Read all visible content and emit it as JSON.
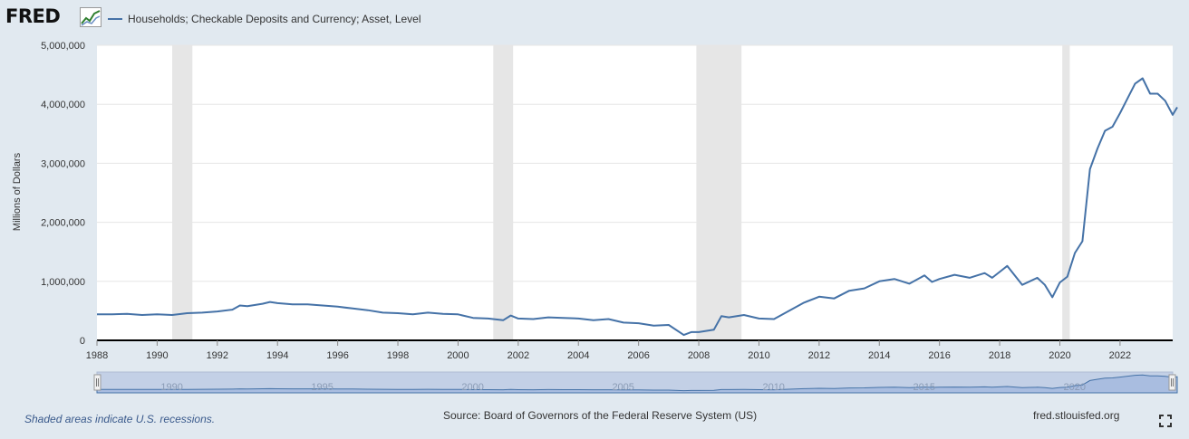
{
  "header": {
    "logo_text": "FRED",
    "logo_icon": "fred-chart-icon",
    "legend_label": "Households; Checkable Deposits and Currency; Asset, Level",
    "series_color": "#4572a7"
  },
  "footer": {
    "recession_note": "Shaded areas indicate U.S. recessions.",
    "source": "Source: Board of Governors of the Federal Reserve System (US)",
    "url": "fred.stlouisfed.org",
    "fullscreen_icon": "fullscreen-icon"
  },
  "chart_data": {
    "type": "line",
    "title": "",
    "ylabel": "Millions of Dollars",
    "xlabel": "",
    "xlim": [
      1988.0,
      2023.75
    ],
    "ylim": [
      0,
      5000000
    ],
    "x_ticks": [
      1988,
      1990,
      1992,
      1994,
      1996,
      1998,
      2000,
      2002,
      2004,
      2006,
      2008,
      2010,
      2012,
      2014,
      2016,
      2018,
      2020,
      2022
    ],
    "y_ticks": [
      0,
      1000000,
      2000000,
      3000000,
      4000000,
      5000000
    ],
    "y_tick_labels": [
      "0",
      "1,000,000",
      "2,000,000",
      "3,000,000",
      "4,000,000",
      "5,000,000"
    ],
    "grid": true,
    "legend_position": "top-left",
    "recessions": [
      [
        1990.5,
        1991.17
      ],
      [
        2001.17,
        2001.83
      ],
      [
        2007.92,
        2009.42
      ],
      [
        2020.08,
        2020.33
      ]
    ],
    "navigator_labels": [
      "1990",
      "1995",
      "2000",
      "2005",
      "2010",
      "2015",
      "2020"
    ],
    "series": [
      {
        "name": "Households; Checkable Deposits and Currency; Asset, Level",
        "color": "#4572a7",
        "points": [
          [
            1988.0,
            440000
          ],
          [
            1988.5,
            440000
          ],
          [
            1989.0,
            450000
          ],
          [
            1989.5,
            430000
          ],
          [
            1990.0,
            440000
          ],
          [
            1990.5,
            430000
          ],
          [
            1991.0,
            460000
          ],
          [
            1991.5,
            470000
          ],
          [
            1992.0,
            490000
          ],
          [
            1992.5,
            520000
          ],
          [
            1992.75,
            590000
          ],
          [
            1993.0,
            580000
          ],
          [
            1993.5,
            620000
          ],
          [
            1993.75,
            650000
          ],
          [
            1994.0,
            630000
          ],
          [
            1994.5,
            610000
          ],
          [
            1995.0,
            610000
          ],
          [
            1995.5,
            590000
          ],
          [
            1996.0,
            570000
          ],
          [
            1996.5,
            540000
          ],
          [
            1997.0,
            510000
          ],
          [
            1997.5,
            470000
          ],
          [
            1998.0,
            460000
          ],
          [
            1998.5,
            440000
          ],
          [
            1999.0,
            470000
          ],
          [
            1999.5,
            450000
          ],
          [
            2000.0,
            440000
          ],
          [
            2000.5,
            380000
          ],
          [
            2001.0,
            370000
          ],
          [
            2001.5,
            340000
          ],
          [
            2001.75,
            420000
          ],
          [
            2002.0,
            370000
          ],
          [
            2002.5,
            360000
          ],
          [
            2003.0,
            390000
          ],
          [
            2003.5,
            380000
          ],
          [
            2004.0,
            370000
          ],
          [
            2004.5,
            340000
          ],
          [
            2005.0,
            360000
          ],
          [
            2005.5,
            300000
          ],
          [
            2006.0,
            290000
          ],
          [
            2006.5,
            250000
          ],
          [
            2007.0,
            260000
          ],
          [
            2007.5,
            90000
          ],
          [
            2007.75,
            140000
          ],
          [
            2008.0,
            140000
          ],
          [
            2008.5,
            180000
          ],
          [
            2008.75,
            410000
          ],
          [
            2009.0,
            390000
          ],
          [
            2009.5,
            430000
          ],
          [
            2010.0,
            370000
          ],
          [
            2010.5,
            360000
          ],
          [
            2011.0,
            500000
          ],
          [
            2011.5,
            640000
          ],
          [
            2012.0,
            740000
          ],
          [
            2012.5,
            710000
          ],
          [
            2013.0,
            840000
          ],
          [
            2013.5,
            880000
          ],
          [
            2014.0,
            1000000
          ],
          [
            2014.5,
            1040000
          ],
          [
            2015.0,
            960000
          ],
          [
            2015.5,
            1100000
          ],
          [
            2015.75,
            990000
          ],
          [
            2016.0,
            1040000
          ],
          [
            2016.5,
            1110000
          ],
          [
            2017.0,
            1060000
          ],
          [
            2017.5,
            1140000
          ],
          [
            2017.75,
            1060000
          ],
          [
            2018.0,
            1160000
          ],
          [
            2018.25,
            1260000
          ],
          [
            2018.5,
            1100000
          ],
          [
            2018.75,
            940000
          ],
          [
            2019.0,
            1000000
          ],
          [
            2019.25,
            1060000
          ],
          [
            2019.5,
            940000
          ],
          [
            2019.75,
            730000
          ],
          [
            2020.0,
            980000
          ],
          [
            2020.25,
            1080000
          ],
          [
            2020.5,
            1480000
          ],
          [
            2020.75,
            1680000
          ],
          [
            2021.0,
            2900000
          ],
          [
            2021.25,
            3250000
          ],
          [
            2021.5,
            3550000
          ],
          [
            2021.75,
            3620000
          ],
          [
            2022.0,
            3850000
          ],
          [
            2022.25,
            4100000
          ],
          [
            2022.5,
            4350000
          ],
          [
            2022.75,
            4440000
          ],
          [
            2023.0,
            4180000
          ],
          [
            2023.25,
            4180000
          ],
          [
            2023.5,
            4060000
          ],
          [
            2023.75,
            3820000
          ],
          [
            2023.9,
            3950000
          ]
        ]
      }
    ]
  }
}
